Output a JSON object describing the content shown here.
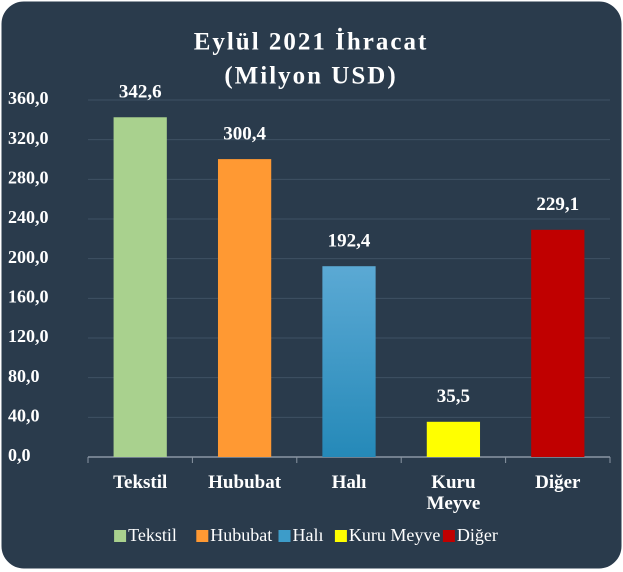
{
  "chart_data": {
    "type": "bar",
    "title": "Eylül 2021 İhracat",
    "subtitle": "(Milyon USD)",
    "categories": [
      "Tekstil",
      "Hububat",
      "Halı",
      "Kuru Meyve",
      "Diğer"
    ],
    "values": [
      342.6,
      300.4,
      192.4,
      35.5,
      229.1
    ],
    "value_labels": [
      "342,6",
      "300,4",
      "192,4",
      "35,5",
      "229,1"
    ],
    "colors": [
      "#a9d18e",
      "#ff9933",
      "#3d9cc9",
      "#ffff00",
      "#c00000"
    ],
    "ylim": [
      0,
      360
    ],
    "yticks": [
      {
        "value": 0,
        "label": "0,0"
      },
      {
        "value": 40,
        "label": "40,0"
      },
      {
        "value": 80,
        "label": "80,0"
      },
      {
        "value": 120,
        "label": "120,0"
      },
      {
        "value": 160,
        "label": "160,0"
      },
      {
        "value": 200,
        "label": "200,0"
      },
      {
        "value": 240,
        "label": "240,0"
      },
      {
        "value": 280,
        "label": "280,0"
      },
      {
        "value": 320,
        "label": "320,0"
      },
      {
        "value": 360,
        "label": "360,0"
      }
    ],
    "grid": true,
    "legend": "bottom"
  }
}
